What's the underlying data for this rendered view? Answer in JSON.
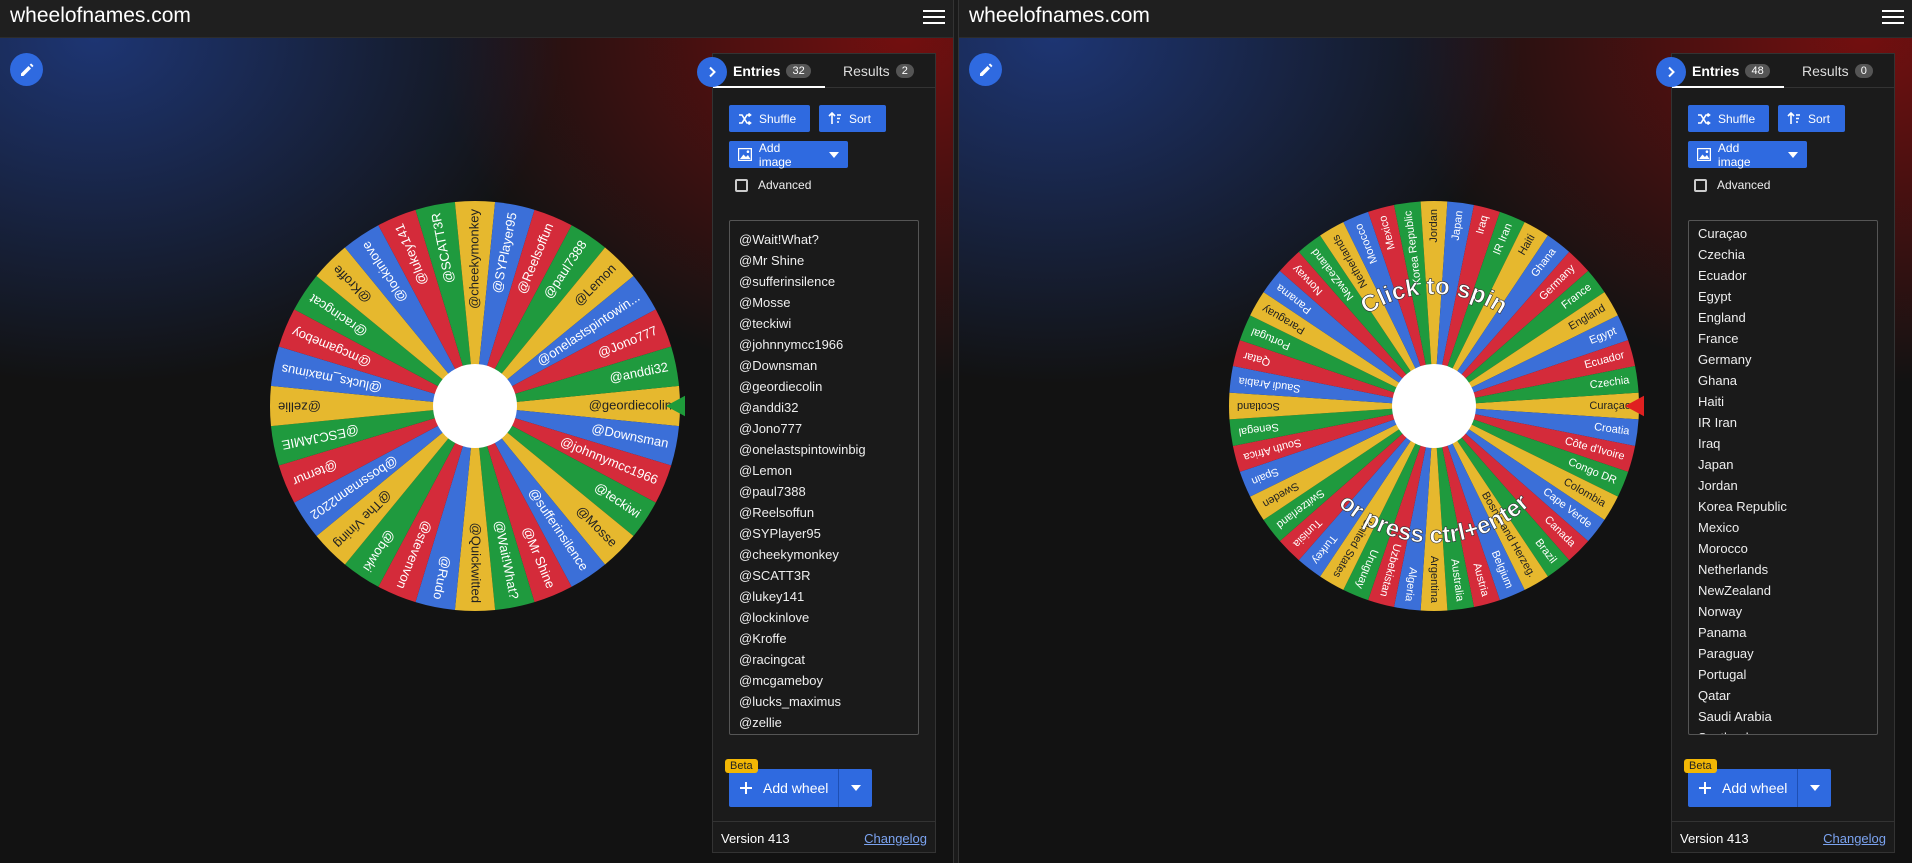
{
  "panels": [
    {
      "site_title": "wheelofnames.com",
      "tabs": {
        "entries_label": "Entries",
        "entries_count": "32",
        "results_label": "Results",
        "results_count": "2"
      },
      "buttons": {
        "shuffle": "Shuffle",
        "sort": "Sort",
        "add_image": "Add image"
      },
      "advanced_label": "Advanced",
      "entries": [
        "@Wait!What?",
        "@Mr Shine",
        "@sufferinsilence",
        "@Mosse",
        "@teckiwi",
        "@johnnymcc1966",
        "@Downsman",
        "@geordiecolin",
        "@anddi32",
        "@Jono777",
        "@onelastspintowinbig",
        "@Lemon",
        "@paul7388",
        "@Reelsoffun",
        "@SYPlayer95",
        "@cheekymonkey",
        "@SCATT3R",
        "@lukey141",
        "@lockinlove",
        "@Kroffe",
        "@racingcat",
        "@mcgameboy",
        "@lucks_maximus",
        "@zellie"
      ],
      "wheel": {
        "labels": [
          "@geordiecolin",
          "@Downsman",
          "@johnnymcc1966",
          "@teckiwi",
          "@Mosse",
          "@sufferinsilence",
          "@Mr Shine",
          "@Wait!What?",
          "@Quickwitted",
          "@Rudo",
          "@stevenvon",
          "@bowki",
          "@The Vining",
          "@bossmann2202",
          "@ternur",
          "@ESCJAMIE",
          "@zellie",
          "@lucks_maximus",
          "@mcgameboy",
          "@racingcat",
          "@Kroffe",
          "@lockinlove",
          "@lukey141",
          "@SCATT3R",
          "@cheekymonkey",
          "@SYPlayer95",
          "@Reelsoffun",
          "@paul7388",
          "@Lemon",
          "@onelastspintowin...",
          "@Jono777",
          "@anddi32"
        ],
        "pointer_color": "#1e9b3a",
        "overlay_line1": "",
        "overlay_line2": ""
      },
      "add_wheel": {
        "beta": "Beta",
        "label": "Add wheel"
      },
      "footer": {
        "version": "Version 413",
        "changelog": "Changelog"
      }
    },
    {
      "site_title": "wheelofnames.com",
      "tabs": {
        "entries_label": "Entries",
        "entries_count": "48",
        "results_label": "Results",
        "results_count": "0"
      },
      "buttons": {
        "shuffle": "Shuffle",
        "sort": "Sort",
        "add_image": "Add image"
      },
      "advanced_label": "Advanced",
      "entries": [
        "Curaçao",
        "Czechia",
        "Ecuador",
        "Egypt",
        "England",
        "France",
        "Germany",
        "Ghana",
        "Haiti",
        "IR Iran",
        "Iraq",
        "Japan",
        "Jordan",
        "Korea Republic",
        "Mexico",
        "Morocco",
        "Netherlands",
        "NewZealand",
        "Norway",
        "Panama",
        "Paraguay",
        "Portugal",
        "Qatar",
        "Saudi Arabia",
        "Scotland"
      ],
      "wheel": {
        "labels": [
          "Curaçao",
          "Croatia",
          "Côte d'Ivoire",
          "Congo DR",
          "Colombia",
          "Cape Verde",
          "Canada",
          "Brazil",
          "Bosnia and Herzeg.",
          "Belgium",
          "Austria",
          "Australia",
          "Argentina",
          "Algeria",
          "Uzbekistan",
          "Uruguay",
          "United States",
          "Turkey",
          "Tunisia",
          "Switzerland",
          "Sweden",
          "Spain",
          "South Africa",
          "Senegal",
          "Scotland",
          "Saudi Arabia",
          "Qatar",
          "Portugal",
          "Paraguay",
          "Panama",
          "Norway",
          "NewZealand",
          "Netherlands",
          "Morocco",
          "Mexico",
          "Korea Republic",
          "Jordan",
          "Japan",
          "Iraq",
          "IR Iran",
          "Haiti",
          "Ghana",
          "Germany",
          "France",
          "England",
          "Egypt",
          "Ecuador",
          "Czechia"
        ],
        "pointer_color": "#e02020",
        "overlay_line1": "Click to spin",
        "overlay_line2": "or press ctrl+enter"
      },
      "add_wheel": {
        "beta": "Beta",
        "label": "Add wheel"
      },
      "footer": {
        "version": "Version 413",
        "changelog": "Changelog"
      }
    }
  ],
  "colors": {
    "accent": "#2f6ae0",
    "beta": "#f2b705",
    "wheel_segments": [
      "#e6b82e",
      "#3b6fd8",
      "#d42b3a",
      "#1f9a3e"
    ]
  }
}
